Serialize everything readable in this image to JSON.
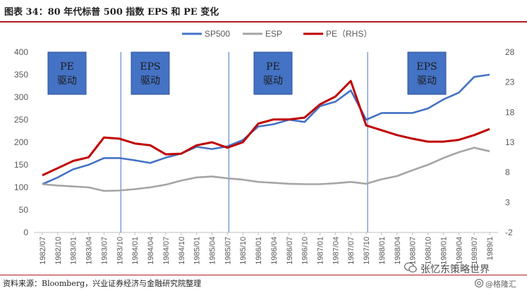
{
  "header": {
    "title": "图表 34：80 年代标普 500 指数 EPS 和 PE 变化"
  },
  "footer": {
    "source": "资料来源：Bloomberg，兴业证券经济与金融研究院整理"
  },
  "watermark": {
    "account": "张忆东策略世界",
    "handle": "@格隆汇"
  },
  "chart_data": {
    "type": "line",
    "title": "",
    "x": [
      "1982/07",
      "1982/10",
      "1983/01",
      "1983/04",
      "1983/07",
      "1983/10",
      "1984/01",
      "1984/04",
      "1984/07",
      "1984/10",
      "1985/01",
      "1985/04",
      "1985/07",
      "1985/10",
      "1986/01",
      "1986/04",
      "1986/07",
      "1986/10",
      "1987/01",
      "1987/04",
      "1987/07",
      "1987/10",
      "1988/01",
      "1988/04",
      "1988/07",
      "1988/10",
      "1989/01",
      "1989/04",
      "1989/07",
      "1989/10"
    ],
    "xticks_shown": [
      "1982/07",
      "1982/10",
      "1983/01",
      "1983/04",
      "1983/07",
      "1983/10",
      "1984/01",
      "1984/04",
      "1984/07",
      "1984/10",
      "1985/01",
      "1985/04",
      "1985/07",
      "1985/10",
      "1986/01",
      "1986/04",
      "1986/07",
      "1986/10",
      "1987/01",
      "1987/04",
      "1987/07",
      "1987/10",
      "1988/01",
      "1988/04",
      "1988/07",
      "1988/10",
      "1989/01",
      "1989/04",
      "1989/07",
      "1989/1"
    ],
    "y_left": {
      "min": 0,
      "max": 400,
      "step": 50,
      "ticks": [
        "0",
        "50",
        "100",
        "150",
        "200",
        "250",
        "300",
        "350",
        "400"
      ]
    },
    "y_right": {
      "min": -2,
      "max": 28,
      "step": 5,
      "ticks": [
        "-2",
        "3",
        "8",
        "13",
        "18",
        "23",
        "28"
      ]
    },
    "series": [
      {
        "name": "SP500",
        "axis": "left",
        "color": "#4472c4",
        "values": [
          107,
          122,
          140,
          150,
          165,
          165,
          160,
          154,
          166,
          175,
          190,
          185,
          191,
          205,
          235,
          240,
          250,
          245,
          280,
          290,
          315,
          250,
          265,
          265,
          265,
          275,
          295,
          310,
          345,
          350
        ]
      },
      {
        "name": "ESP",
        "axis": "left",
        "color": "#a5a5a5",
        "values": [
          107,
          104,
          102,
          100,
          92,
          93,
          96,
          100,
          106,
          115,
          122,
          124,
          120,
          117,
          112,
          110,
          108,
          107,
          107,
          109,
          112,
          108,
          118,
          125,
          138,
          150,
          165,
          178,
          188,
          180
        ]
      },
      {
        "name": "PE（RHS）",
        "axis": "right",
        "color": "#c00000",
        "values": [
          7.5,
          8.7,
          9.9,
          10.5,
          13.8,
          13.6,
          12.8,
          12.5,
          11.0,
          11.1,
          12.5,
          13.0,
          12.1,
          13.0,
          16.1,
          16.8,
          16.8,
          17.1,
          19.3,
          20.6,
          23.2,
          15.8,
          15.0,
          14.2,
          13.6,
          13.1,
          13.1,
          13.4,
          14.2,
          15.2
        ]
      }
    ],
    "regimes": [
      {
        "label_line1": "PE",
        "label_line2": "驱动",
        "x_from": "1982/07",
        "x_to": "1983/10"
      },
      {
        "label_line1": "EPS",
        "label_line2": "驱动",
        "x_from": "1983/10",
        "x_to": "1985/07"
      },
      {
        "label_line1": "PE",
        "label_line2": "驱动",
        "x_from": "1985/07",
        "x_to": "1987/10"
      },
      {
        "label_line1": "EPS",
        "label_line2": "驱动",
        "x_from": "1987/10",
        "x_to": "1989/10"
      }
    ],
    "legend_position": "top-right",
    "grid": false
  }
}
